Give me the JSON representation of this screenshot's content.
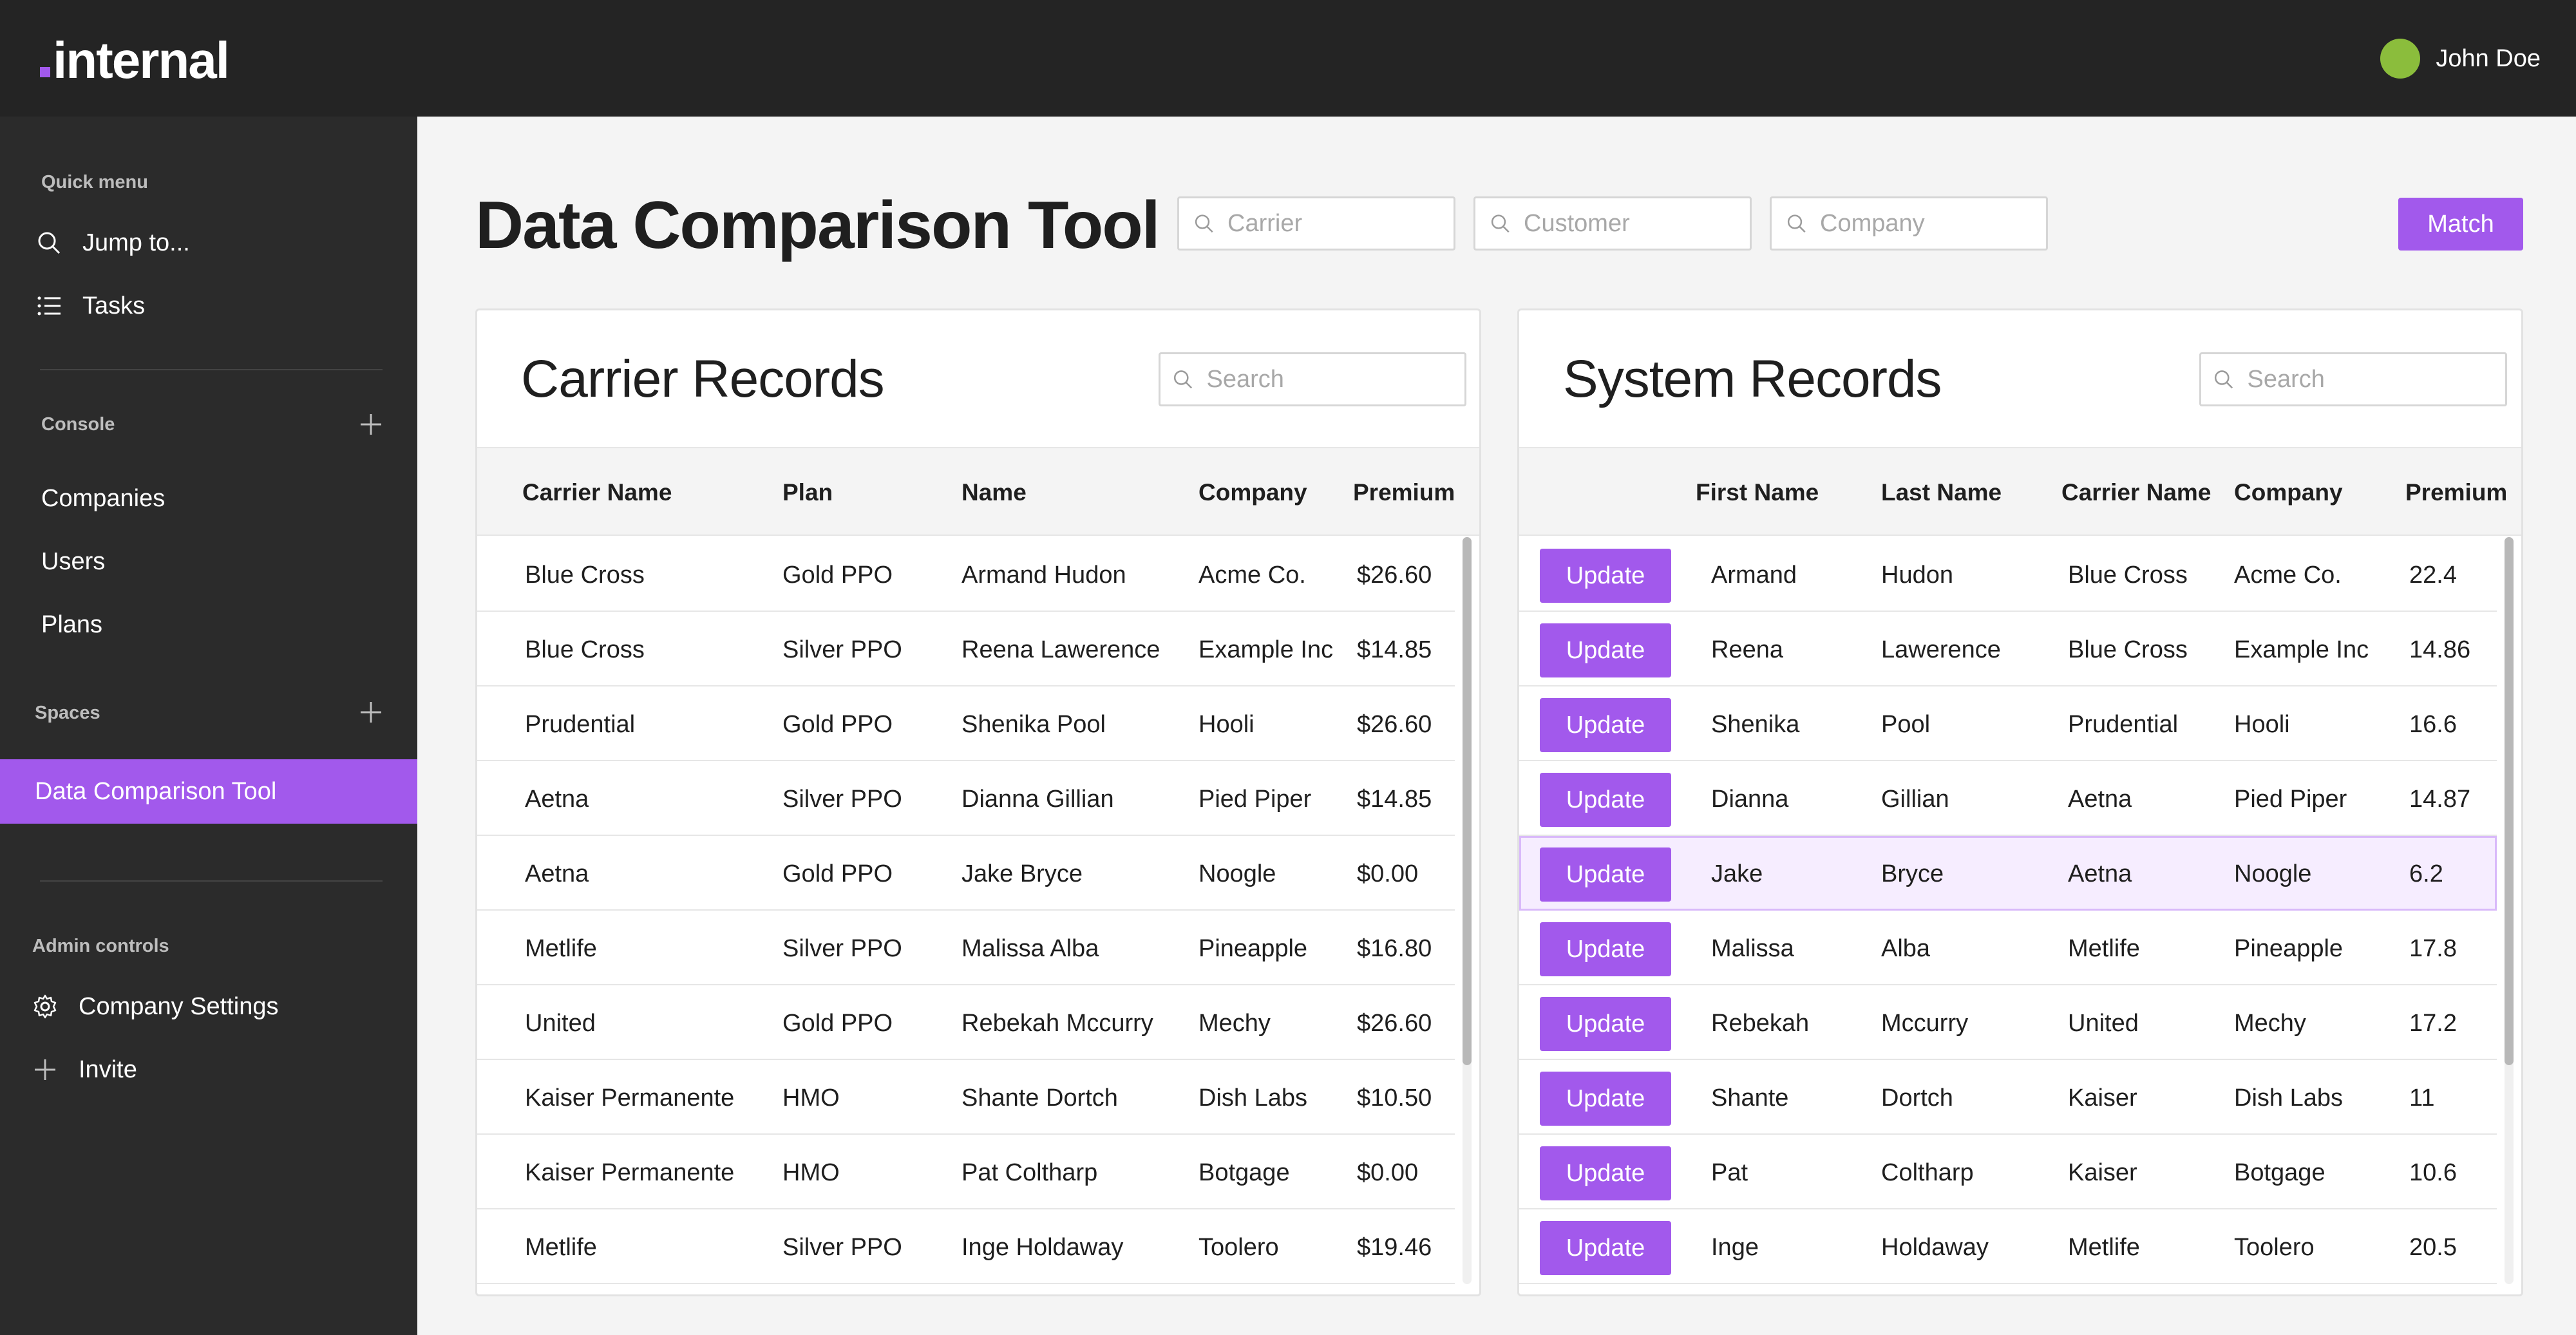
{
  "app": {
    "logo_text": "internal",
    "user_name": "John Doe"
  },
  "sidebar": {
    "quick_menu_label": "Quick menu",
    "jump_label": "Jump to...",
    "tasks_label": "Tasks",
    "console_label": "Console",
    "companies_label": "Companies",
    "users_label": "Users",
    "plans_label": "Plans",
    "spaces_label": "Spaces",
    "active_space_label": "Data Comparison Tool",
    "admin_label": "Admin controls",
    "company_settings_label": "Company Settings",
    "invite_label": "Invite"
  },
  "header": {
    "title": "Data Comparison Tool",
    "carrier_placeholder": "Carrier",
    "customer_placeholder": "Customer",
    "company_placeholder": "Company",
    "match_label": "Match"
  },
  "carrier_panel": {
    "title": "Carrier Records",
    "search_placeholder": "Search",
    "columns": [
      "Carrier Name",
      "Plan",
      "Name",
      "Company",
      "Premium"
    ],
    "rows": [
      [
        "Blue Cross",
        "Gold PPO",
        "Armand Hudon",
        "Acme Co.",
        "$26.60"
      ],
      [
        "Blue Cross",
        "Silver PPO",
        "Reena Lawerence",
        "Example Inc",
        "$14.85"
      ],
      [
        "Prudential",
        "Gold PPO",
        "Shenika Pool",
        "Hooli",
        "$26.60"
      ],
      [
        "Aetna",
        "Silver PPO",
        "Dianna Gillian",
        "Pied Piper",
        "$14.85"
      ],
      [
        "Aetna",
        "Gold PPO",
        "Jake Bryce",
        "Noogle",
        "$0.00"
      ],
      [
        "Metlife",
        "Silver PPO",
        "Malissa Alba",
        "Pineapple",
        "$16.80"
      ],
      [
        "United",
        "Gold PPO",
        "Rebekah Mccurry",
        "Mechy",
        "$26.60"
      ],
      [
        "Kaiser Permanente",
        "HMO",
        "Shante Dortch",
        "Dish Labs",
        "$10.50"
      ],
      [
        "Kaiser Permanente",
        "HMO",
        "Pat Coltharp",
        "Botgage",
        "$0.00"
      ],
      [
        "Metlife",
        "Silver PPO",
        "Inge Holdaway",
        "Toolero",
        "$19.46"
      ]
    ]
  },
  "system_panel": {
    "title": "System Records",
    "search_placeholder": "Search",
    "update_label": "Update",
    "columns": [
      "First Name",
      "Last Name",
      "Carrier Name",
      "Company",
      "Premium"
    ],
    "rows": [
      [
        "Armand",
        "Hudon",
        "Blue Cross",
        "Acme Co.",
        "22.4"
      ],
      [
        "Reena",
        "Lawerence",
        "Blue Cross",
        "Example Inc",
        "14.86"
      ],
      [
        "Shenika",
        "Pool",
        "Prudential",
        "Hooli",
        "16.6"
      ],
      [
        "Dianna",
        "Gillian",
        "Aetna",
        "Pied Piper",
        "14.87"
      ],
      [
        "Jake",
        "Bryce",
        "Aetna",
        "Noogle",
        "6.2"
      ],
      [
        "Malissa",
        "Alba",
        "Metlife",
        "Pineapple",
        "17.8"
      ],
      [
        "Rebekah",
        "Mccurry",
        "United",
        "Mechy",
        "17.2"
      ],
      [
        "Shante",
        "Dortch",
        "Kaiser",
        "Dish Labs",
        "11"
      ],
      [
        "Pat",
        "Coltharp",
        "Kaiser",
        "Botgage",
        "10.6"
      ],
      [
        "Inge",
        "Holdaway",
        "Metlife",
        "Toolero",
        "20.5"
      ]
    ]
  },
  "colors": {
    "accent": "#a259ec",
    "topbar": "#242424",
    "sidebar": "#2b2b2b",
    "avatar": "#8bbd3c"
  }
}
